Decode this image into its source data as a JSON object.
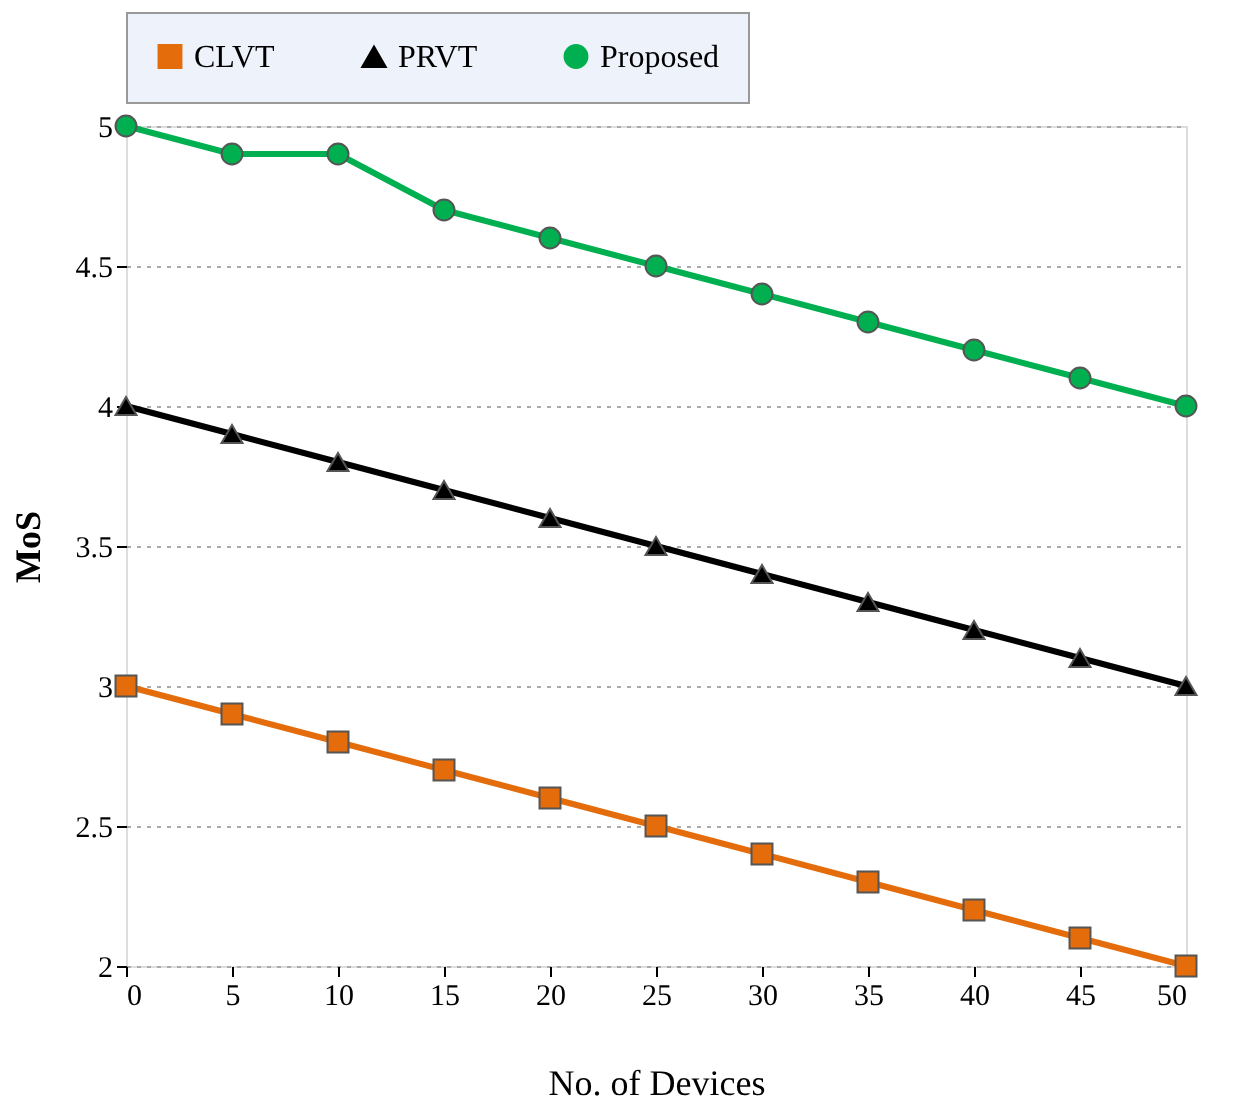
{
  "chart_data": {
    "type": "line",
    "xlabel": "No. of Devices",
    "ylabel": "MoS",
    "x": [
      0,
      5,
      10,
      15,
      20,
      25,
      30,
      35,
      40,
      45,
      50
    ],
    "series": [
      {
        "name": "CLVT",
        "color": "#e46c0a",
        "marker": "square",
        "values": [
          3,
          2.9,
          2.8,
          2.7,
          2.6,
          2.5,
          2.4,
          2.3,
          2.2,
          2.1,
          2.0
        ]
      },
      {
        "name": "PRVT",
        "color": "#000000",
        "marker": "triangle",
        "values": [
          4,
          3.9,
          3.8,
          3.7,
          3.6,
          3.5,
          3.4,
          3.3,
          3.2,
          3.1,
          3.0
        ]
      },
      {
        "name": "Proposed",
        "color": "#00b050",
        "marker": "circle",
        "values": [
          5,
          4.9,
          4.9,
          4.7,
          4.6,
          4.5,
          4.4,
          4.3,
          4.2,
          4.1,
          4.0
        ]
      }
    ],
    "xlim": [
      0,
      50
    ],
    "xticks": [
      0,
      5,
      10,
      15,
      20,
      25,
      30,
      35,
      40,
      45,
      50
    ],
    "ylim": [
      2,
      5
    ],
    "yticks": [
      2,
      2.5,
      3,
      3.5,
      4,
      4.5,
      5
    ],
    "grid": "y",
    "legend": "top",
    "line_style": "solid"
  }
}
